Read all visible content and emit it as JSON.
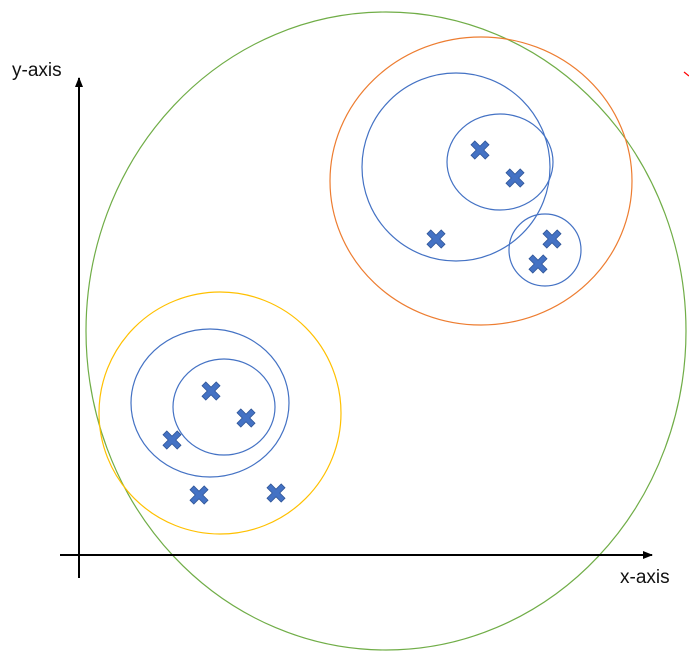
{
  "axes": {
    "x_label": "x-axis",
    "y_label": "y-axis",
    "color": "#000000"
  },
  "colors": {
    "green": "#70ad47",
    "orange": "#ed7d31",
    "yellow": "#ffc000",
    "blue": "#4472c4",
    "marker": "#4472c4"
  },
  "clusters": [
    {
      "id": "outer-all",
      "level": 1,
      "color_key": "green"
    },
    {
      "id": "top-right-group",
      "level": 2,
      "color_key": "orange"
    },
    {
      "id": "top-right-left",
      "level": 3,
      "color_key": "blue"
    },
    {
      "id": "top-right-inner",
      "level": 4,
      "color_key": "blue"
    },
    {
      "id": "top-right-small",
      "level": 3,
      "color_key": "blue"
    },
    {
      "id": "bottom-left-group",
      "level": 2,
      "color_key": "yellow"
    },
    {
      "id": "bottom-left-mid",
      "level": 3,
      "color_key": "blue"
    },
    {
      "id": "bottom-left-inner",
      "level": 4,
      "color_key": "blue"
    }
  ],
  "points": [
    {
      "id": "p1",
      "group": "top-right-inner"
    },
    {
      "id": "p2",
      "group": "top-right-inner"
    },
    {
      "id": "p3",
      "group": "top-right-left"
    },
    {
      "id": "p4",
      "group": "top-right-small"
    },
    {
      "id": "p5",
      "group": "top-right-small"
    },
    {
      "id": "p6",
      "group": "bottom-left-inner"
    },
    {
      "id": "p7",
      "group": "bottom-left-inner"
    },
    {
      "id": "p8",
      "group": "bottom-left-mid"
    },
    {
      "id": "p9",
      "group": "bottom-left-group"
    },
    {
      "id": "p10",
      "group": "bottom-left-group"
    }
  ]
}
